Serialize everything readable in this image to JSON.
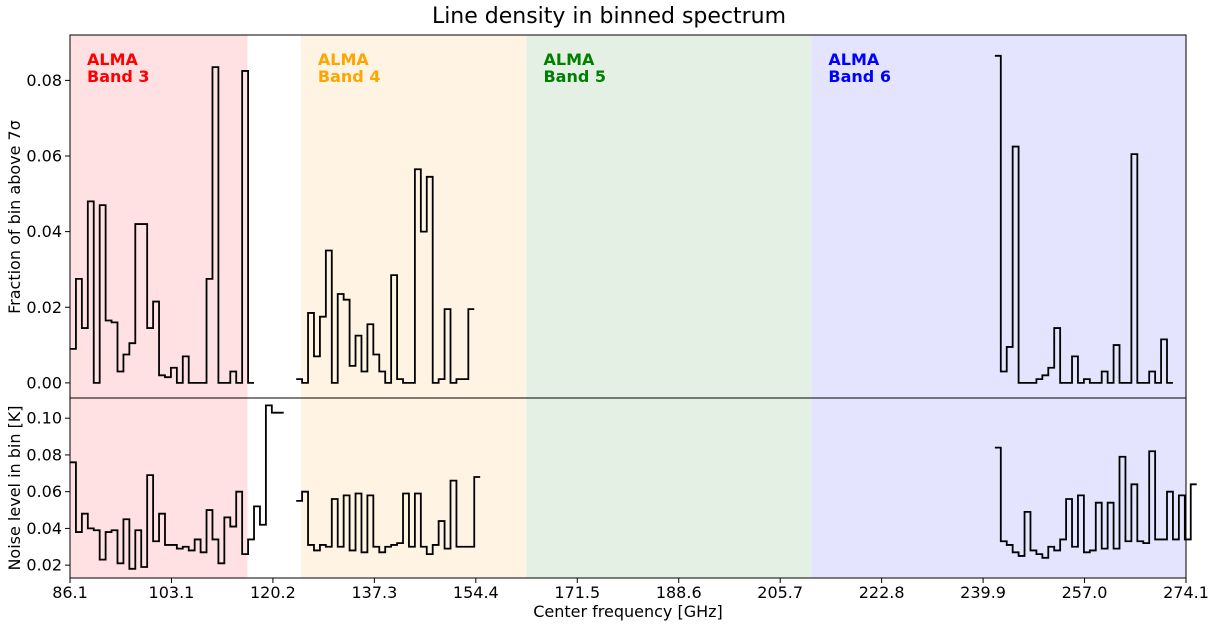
{
  "chart_data": {
    "type": "line",
    "title": "Line density in binned spectrum",
    "xlabel": "Center frequency [GHz]",
    "xlim": [
      86.1,
      274.1
    ],
    "xticks": [
      "86.1",
      "103.1",
      "120.2",
      "137.3",
      "154.4",
      "171.5",
      "188.6",
      "205.7",
      "222.8",
      "239.9",
      "257.0",
      "274.1"
    ],
    "bands": [
      {
        "line1": "ALMA",
        "line2": "Band 3",
        "color": "#ff0000",
        "fill": "#ffe1e4",
        "range": [
          86.1,
          116.0
        ]
      },
      {
        "line1": "ALMA",
        "line2": "Band 4",
        "color": "#ffa500",
        "fill": "#fff4e3",
        "range": [
          125.0,
          163.0
        ]
      },
      {
        "line1": "ALMA",
        "line2": "Band 5",
        "color": "#008000",
        "fill": "#e5f0e5",
        "range": [
          163.0,
          211.0
        ]
      },
      {
        "line1": "ALMA",
        "line2": "Band 6",
        "color": "#0000ff",
        "fill": "#e4e4ff",
        "range": [
          211.0,
          274.1
        ]
      }
    ],
    "panels": [
      {
        "ylabel": "Fraction of bin above 7σ",
        "ylim": [
          -0.004,
          0.092
        ],
        "yticks": [
          "0.00",
          "0.02",
          "0.04",
          "0.06",
          "0.08"
        ],
        "ytick_values": [
          0.0,
          0.02,
          0.04,
          0.06,
          0.08
        ],
        "segments": [
          {
            "x_start": 86.1,
            "step": 1.0,
            "values": [
              0.009,
              0.0275,
              0.0145,
              0.048,
              0.0,
              0.047,
              0.0165,
              0.016,
              0.003,
              0.0075,
              0.0105,
              0.042,
              0.042,
              0.0145,
              0.0215,
              0.002,
              0.0015,
              0.004,
              0.0,
              0.007,
              0.0,
              0.0,
              0.0,
              0.0275,
              0.0835,
              0.0,
              0.0,
              0.003,
              0.0,
              0.0825,
              0.0
            ]
          },
          {
            "x_start": 124.2,
            "step": 1.0,
            "values": [
              0.001,
              0.0,
              0.0185,
              0.007,
              0.0175,
              0.035,
              0.0,
              0.0235,
              0.022,
              0.0045,
              0.0125,
              0.003,
              0.0155,
              0.0075,
              0.003,
              0.0,
              0.0285,
              0.001,
              0.0,
              0.0,
              0.0565,
              0.04,
              0.0545,
              0.0,
              0.001,
              0.0195,
              0.0,
              0.001,
              0.001,
              0.0195
            ]
          },
          {
            "x_start": 241.9,
            "step": 1.0,
            "values": [
              0.0865,
              0.003,
              0.0095,
              0.0625,
              0.0,
              0.0,
              0.0,
              0.001,
              0.002,
              0.004,
              0.0145,
              0.0,
              0.0,
              0.007,
              0.0,
              0.001,
              0.0,
              0.0,
              0.003,
              0.0,
              0.01,
              0.0,
              0.0,
              0.0605,
              0.0,
              0.0,
              0.003,
              0.0,
              0.0115,
              0.0
            ]
          }
        ]
      },
      {
        "ylabel": "Noise level in bin [K]",
        "ylim": [
          0.013,
          0.111
        ],
        "yticks": [
          "0.02",
          "0.04",
          "0.06",
          "0.08",
          "0.10"
        ],
        "ytick_values": [
          0.02,
          0.04,
          0.06,
          0.08,
          0.1
        ],
        "segments": [
          {
            "x_start": 86.1,
            "step": 1.0,
            "values": [
              0.076,
              0.038,
              0.048,
              0.04,
              0.039,
              0.023,
              0.038,
              0.039,
              0.021,
              0.045,
              0.018,
              0.039,
              0.019,
              0.069,
              0.033,
              0.048,
              0.031,
              0.031,
              0.029,
              0.03,
              0.028,
              0.034,
              0.027,
              0.05,
              0.034,
              0.021,
              0.046,
              0.041,
              0.06,
              0.026,
              0.034,
              0.052,
              0.042,
              0.107,
              0.103,
              0.103
            ]
          },
          {
            "x_start": 124.2,
            "step": 1.0,
            "values": [
              0.055,
              0.06,
              0.031,
              0.028,
              0.031,
              0.03,
              0.056,
              0.03,
              0.058,
              0.028,
              0.059,
              0.027,
              0.058,
              0.03,
              0.027,
              0.03,
              0.031,
              0.032,
              0.059,
              0.03,
              0.059,
              0.03,
              0.026,
              0.031,
              0.044,
              0.029,
              0.066,
              0.03,
              0.03,
              0.03,
              0.068
            ]
          },
          {
            "x_start": 241.9,
            "step": 1.0,
            "values": [
              0.084,
              0.033,
              0.031,
              0.027,
              0.025,
              0.049,
              0.028,
              0.026,
              0.024,
              0.03,
              0.028,
              0.034,
              0.056,
              0.03,
              0.058,
              0.027,
              0.028,
              0.054,
              0.029,
              0.054,
              0.029,
              0.079,
              0.033,
              0.064,
              0.033,
              0.032,
              0.082,
              0.034,
              0.034,
              0.06,
              0.034,
              0.058,
              0.034,
              0.064
            ]
          }
        ]
      }
    ]
  }
}
